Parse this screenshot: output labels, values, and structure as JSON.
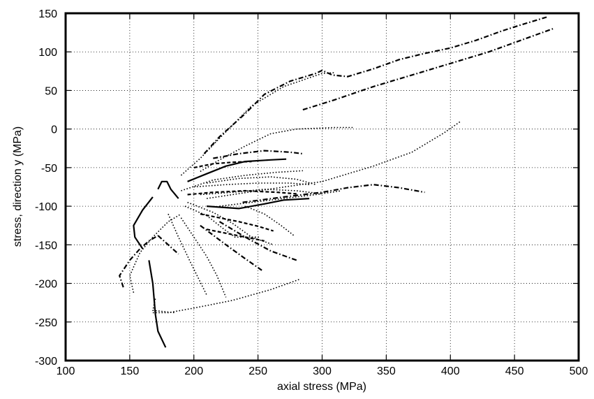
{
  "chart_data": {
    "type": "line",
    "title": "",
    "xlabel": "axial stress (MPa)",
    "ylabel": "stress, direction y (MPa)",
    "xlim": [
      100,
      500
    ],
    "ylim": [
      -300,
      150
    ],
    "xticks": [
      100,
      150,
      200,
      250,
      300,
      350,
      400,
      450,
      500
    ],
    "yticks": [
      -300,
      -250,
      -200,
      -150,
      -100,
      -50,
      0,
      50,
      100,
      150
    ],
    "grid": true,
    "legend": "none",
    "series": [
      {
        "style": "solid",
        "points": [
          [
            165,
            -170
          ],
          [
            168,
            -200
          ],
          [
            170,
            -240
          ],
          [
            172,
            -262
          ],
          [
            178,
            -283
          ]
        ]
      },
      {
        "style": "solid",
        "points": [
          [
            168,
            -88
          ],
          [
            160,
            -105
          ],
          [
            153,
            -125
          ],
          [
            154,
            -140
          ],
          [
            160,
            -155
          ]
        ]
      },
      {
        "style": "solid",
        "points": [
          [
            172,
            -78
          ],
          [
            175,
            -68
          ],
          [
            179,
            -68
          ],
          [
            182,
            -78
          ],
          [
            188,
            -90
          ]
        ]
      },
      {
        "style": "solid",
        "points": [
          [
            195,
            -68
          ],
          [
            210,
            -58
          ],
          [
            225,
            -48
          ],
          [
            240,
            -42
          ],
          [
            260,
            -40
          ],
          [
            272,
            -39
          ]
        ]
      },
      {
        "style": "solid",
        "points": [
          [
            210,
            -100
          ],
          [
            235,
            -103
          ],
          [
            255,
            -97
          ],
          [
            270,
            -92
          ],
          [
            290,
            -90
          ]
        ]
      },
      {
        "style": "dotted",
        "points": [
          [
            168,
            -238
          ],
          [
            180,
            -238
          ],
          [
            200,
            -232
          ],
          [
            230,
            -222
          ],
          [
            260,
            -208
          ],
          [
            282,
            -195
          ]
        ]
      },
      {
        "style": "dotted",
        "points": [
          [
            170,
            -220
          ],
          [
            168,
            -235
          ],
          [
            185,
            -238
          ]
        ]
      },
      {
        "style": "dotted",
        "points": [
          [
            153,
            -212
          ],
          [
            150,
            -190
          ],
          [
            158,
            -160
          ],
          [
            168,
            -140
          ],
          [
            180,
            -120
          ],
          [
            190,
            -110
          ]
        ]
      },
      {
        "style": "dotted",
        "points": [
          [
            193,
            -100
          ],
          [
            210,
            -112
          ],
          [
            222,
            -128
          ],
          [
            232,
            -140
          ],
          [
            252,
            -140
          ]
        ]
      },
      {
        "style": "dotted",
        "points": [
          [
            190,
            -80
          ],
          [
            215,
            -66
          ],
          [
            240,
            -60
          ],
          [
            265,
            -56
          ],
          [
            285,
            -54
          ]
        ]
      },
      {
        "style": "dotted",
        "points": [
          [
            190,
            -60
          ],
          [
            205,
            -38
          ],
          [
            220,
            -12
          ],
          [
            245,
            30
          ],
          [
            270,
            55
          ],
          [
            300,
            72
          ],
          [
            310,
            73
          ]
        ]
      },
      {
        "style": "dotted",
        "points": [
          [
            205,
            -55
          ],
          [
            220,
            -40
          ],
          [
            240,
            -22
          ],
          [
            260,
            -6
          ],
          [
            280,
            0
          ],
          [
            310,
            2
          ],
          [
            325,
            2
          ]
        ]
      },
      {
        "style": "dotted",
        "points": [
          [
            210,
            -90
          ],
          [
            250,
            -80
          ],
          [
            300,
            -68
          ],
          [
            340,
            -48
          ],
          [
            370,
            -30
          ],
          [
            395,
            -5
          ],
          [
            408,
            10
          ]
        ]
      },
      {
        "style": "dotted",
        "points": [
          [
            220,
            -100
          ],
          [
            245,
            -95
          ],
          [
            270,
            -90
          ],
          [
            295,
            -85
          ],
          [
            315,
            -80
          ]
        ]
      },
      {
        "style": "dotted",
        "points": [
          [
            210,
            -70
          ],
          [
            235,
            -64
          ],
          [
            260,
            -62
          ],
          [
            280,
            -65
          ],
          [
            295,
            -72
          ]
        ]
      },
      {
        "style": "dotted",
        "points": [
          [
            195,
            -95
          ],
          [
            215,
            -108
          ],
          [
            230,
            -122
          ],
          [
            245,
            -140
          ],
          [
            262,
            -150
          ]
        ]
      },
      {
        "style": "dotted",
        "points": [
          [
            190,
            -115
          ],
          [
            200,
            -140
          ],
          [
            210,
            -165
          ],
          [
            218,
            -190
          ],
          [
            225,
            -218
          ]
        ]
      },
      {
        "style": "dotted",
        "points": [
          [
            180,
            -110
          ],
          [
            188,
            -140
          ],
          [
            198,
            -175
          ],
          [
            210,
            -215
          ]
        ]
      },
      {
        "style": "dotted",
        "points": [
          [
            205,
            -85
          ],
          [
            230,
            -82
          ],
          [
            255,
            -78
          ],
          [
            280,
            -80
          ],
          [
            300,
            -84
          ]
        ]
      },
      {
        "style": "dotted",
        "points": [
          [
            200,
            -75
          ],
          [
            225,
            -72
          ],
          [
            250,
            -70
          ],
          [
            275,
            -70
          ],
          [
            290,
            -72
          ]
        ]
      },
      {
        "style": "dotted",
        "points": [
          [
            240,
            -100
          ],
          [
            255,
            -110
          ],
          [
            268,
            -125
          ],
          [
            278,
            -138
          ]
        ]
      },
      {
        "style": "dashdot",
        "points": [
          [
            208,
            -32
          ],
          [
            220,
            -10
          ],
          [
            240,
            20
          ],
          [
            255,
            45
          ],
          [
            275,
            62
          ],
          [
            295,
            72
          ],
          [
            300,
            76
          ],
          [
            308,
            70
          ],
          [
            320,
            68
          ],
          [
            340,
            78
          ],
          [
            360,
            90
          ],
          [
            380,
            98
          ],
          [
            400,
            105
          ],
          [
            420,
            115
          ],
          [
            440,
            127
          ],
          [
            455,
            135
          ],
          [
            475,
            145
          ]
        ]
      },
      {
        "style": "dashdot",
        "points": [
          [
            285,
            25
          ],
          [
            310,
            38
          ],
          [
            340,
            55
          ],
          [
            370,
            70
          ],
          [
            400,
            85
          ],
          [
            430,
            100
          ],
          [
            460,
            118
          ],
          [
            480,
            130
          ]
        ]
      },
      {
        "style": "dashdot",
        "points": [
          [
            145,
            -205
          ],
          [
            142,
            -190
          ],
          [
            150,
            -170
          ],
          [
            158,
            -155
          ],
          [
            165,
            -145
          ],
          [
            172,
            -138
          ]
        ]
      },
      {
        "style": "dashdot",
        "points": [
          [
            172,
            -138
          ],
          [
            180,
            -150
          ],
          [
            188,
            -162
          ]
        ]
      },
      {
        "style": "dashdot",
        "points": [
          [
            215,
            -38
          ],
          [
            235,
            -32
          ],
          [
            255,
            -28
          ],
          [
            275,
            -30
          ],
          [
            285,
            -32
          ]
        ]
      },
      {
        "style": "dashdot",
        "points": [
          [
            238,
            -95
          ],
          [
            270,
            -88
          ],
          [
            300,
            -82
          ],
          [
            320,
            -76
          ],
          [
            340,
            -72
          ],
          [
            360,
            -76
          ],
          [
            380,
            -82
          ]
        ]
      },
      {
        "style": "dashdot",
        "points": [
          [
            220,
            -120
          ],
          [
            240,
            -140
          ],
          [
            260,
            -158
          ],
          [
            280,
            -170
          ]
        ]
      },
      {
        "style": "dashdot",
        "points": [
          [
            205,
            -125
          ],
          [
            225,
            -150
          ],
          [
            240,
            -168
          ],
          [
            253,
            -183
          ]
        ]
      },
      {
        "style": "dashed",
        "points": [
          [
            200,
            -50
          ],
          [
            215,
            -45
          ],
          [
            230,
            -43
          ],
          [
            245,
            -42
          ]
        ]
      },
      {
        "style": "dashed",
        "points": [
          [
            205,
            -110
          ],
          [
            220,
            -115
          ],
          [
            235,
            -120
          ],
          [
            250,
            -126
          ],
          [
            262,
            -132
          ]
        ]
      },
      {
        "style": "dashed",
        "points": [
          [
            195,
            -85
          ],
          [
            215,
            -82
          ],
          [
            240,
            -80
          ],
          [
            265,
            -82
          ],
          [
            280,
            -84
          ]
        ]
      },
      {
        "style": "dashed",
        "points": [
          [
            210,
            -130
          ],
          [
            225,
            -135
          ],
          [
            240,
            -140
          ],
          [
            255,
            -145
          ]
        ]
      }
    ]
  }
}
